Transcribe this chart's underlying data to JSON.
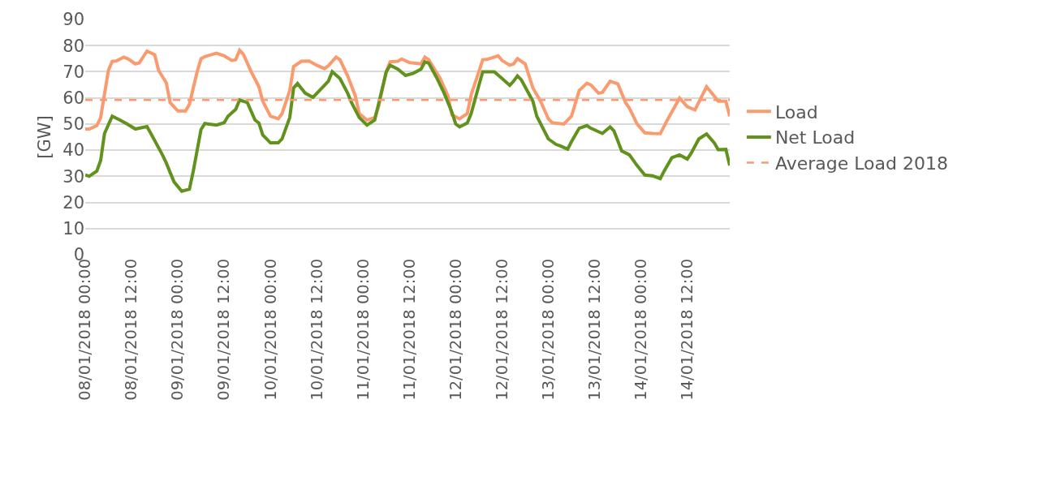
{
  "chart_data": {
    "type": "line",
    "ylabel": "[GW]",
    "xlim": [
      "2018-01-08T00:00",
      "2018-01-14T23:00"
    ],
    "ylim": [
      0,
      90
    ],
    "yticks": [
      0,
      10,
      20,
      30,
      40,
      50,
      60,
      70,
      80,
      90
    ],
    "xticks": [
      {
        "value": "2018-01-08T00:00",
        "label": "08/01/2018 00:00"
      },
      {
        "value": "2018-01-08T12:00",
        "label": "08/01/2018 12:00"
      },
      {
        "value": "2018-01-09T00:00",
        "label": "09/01/2018 00:00"
      },
      {
        "value": "2018-01-09T12:00",
        "label": "09/01/2018 12:00"
      },
      {
        "value": "2018-01-10T00:00",
        "label": "10/01/2018 00:00"
      },
      {
        "value": "2018-01-10T12:00",
        "label": "10/01/2018 12:00"
      },
      {
        "value": "2018-01-11T00:00",
        "label": "11/01/2018 00:00"
      },
      {
        "value": "2018-01-11T12:00",
        "label": "11/01/2018 12:00"
      },
      {
        "value": "2018-01-12T00:00",
        "label": "12/01/2018 00:00"
      },
      {
        "value": "2018-01-12T12:00",
        "label": "12/01/2018 12:00"
      },
      {
        "value": "2018-01-13T00:00",
        "label": "13/01/2018 00:00"
      },
      {
        "value": "2018-01-13T12:00",
        "label": "13/01/2018 12:00"
      },
      {
        "value": "2018-01-14T00:00",
        "label": "14/01/2018 00:00"
      },
      {
        "value": "2018-01-14T12:00",
        "label": "14/01/2018 12:00"
      }
    ],
    "grid": "y",
    "legend": "right",
    "marker": "none",
    "line_style": "solid",
    "series": [
      {
        "name": "Load",
        "color": "#f99a6f",
        "x": [
          "2018-01-08T00:00",
          "2018-01-08T01:00",
          "2018-01-08T03:00",
          "2018-01-08T04:00",
          "2018-01-08T06:00",
          "2018-01-08T07:00",
          "2018-01-08T08:00",
          "2018-01-08T10:00",
          "2018-01-08T11:00",
          "2018-01-08T13:00",
          "2018-01-08T14:00",
          "2018-01-08T16:00",
          "2018-01-08T18:00",
          "2018-01-08T19:00",
          "2018-01-08T21:00",
          "2018-01-08T22:00",
          "2018-01-09T00:00",
          "2018-01-09T02:00",
          "2018-01-09T03:00",
          "2018-01-09T05:00",
          "2018-01-09T06:00",
          "2018-01-09T07:00",
          "2018-01-09T10:00",
          "2018-01-09T12:00",
          "2018-01-09T14:00",
          "2018-01-09T15:00",
          "2018-01-09T16:00",
          "2018-01-09T17:00",
          "2018-01-09T19:00",
          "2018-01-09T21:00",
          "2018-01-09T22:00",
          "2018-01-10T00:00",
          "2018-01-10T02:00",
          "2018-01-10T03:00",
          "2018-01-10T05:00",
          "2018-01-10T06:00",
          "2018-01-10T08:00",
          "2018-01-10T10:00",
          "2018-01-10T12:00",
          "2018-01-10T14:00",
          "2018-01-10T15:00",
          "2018-01-10T17:00",
          "2018-01-10T18:00",
          "2018-01-10T20:00",
          "2018-01-10T22:00",
          "2018-01-10T23:00",
          "2018-01-11T01:00",
          "2018-01-11T03:00",
          "2018-01-11T04:00",
          "2018-01-11T06:00",
          "2018-01-11T07:00",
          "2018-01-11T09:00",
          "2018-01-11T10:00",
          "2018-01-11T12:00",
          "2018-01-11T15:00",
          "2018-01-11T16:00",
          "2018-01-11T17:00",
          "2018-01-11T20:00",
          "2018-01-11T22:00",
          "2018-01-11T23:00",
          "2018-01-12T01:00",
          "2018-01-12T03:00",
          "2018-01-12T04:00",
          "2018-01-12T06:00",
          "2018-01-12T07:00",
          "2018-01-12T08:00",
          "2018-01-12T11:00",
          "2018-01-12T12:00",
          "2018-01-12T14:00",
          "2018-01-12T15:00",
          "2018-01-12T16:00",
          "2018-01-12T18:00",
          "2018-01-12T20:00",
          "2018-01-12T22:00",
          "2018-01-13T00:00",
          "2018-01-13T01:00",
          "2018-01-13T04:00",
          "2018-01-13T06:00",
          "2018-01-13T08:00",
          "2018-01-13T10:00",
          "2018-01-13T11:00",
          "2018-01-13T13:00",
          "2018-01-13T14:00",
          "2018-01-13T16:00",
          "2018-01-13T18:00",
          "2018-01-13T20:00",
          "2018-01-13T21:00",
          "2018-01-13T23:00",
          "2018-01-14T01:00",
          "2018-01-14T03:00",
          "2018-01-14T05:00",
          "2018-01-14T07:00",
          "2018-01-14T10:00",
          "2018-01-14T12:00",
          "2018-01-14T14:00",
          "2018-01-14T17:00",
          "2018-01-14T19:00",
          "2018-01-14T20:00",
          "2018-01-14T22:00",
          "2018-01-14T23:00"
        ],
        "values": [
          48.1,
          48,
          49.4,
          52.5,
          70.5,
          74,
          74.1,
          75.6,
          75,
          73,
          73.4,
          77.9,
          76.5,
          70.5,
          65.8,
          58.2,
          55,
          55,
          57.6,
          70,
          75,
          75.8,
          77.1,
          76.1,
          74.3,
          74.6,
          78.2,
          76.6,
          70,
          64.3,
          58.7,
          53,
          52,
          54,
          62.8,
          72,
          74,
          74.1,
          72.5,
          71.2,
          72.3,
          75.6,
          74.6,
          68.4,
          60.7,
          54,
          51.5,
          52.5,
          56.6,
          70,
          73.8,
          74,
          74.9,
          73.5,
          73,
          75.6,
          74.6,
          67.4,
          60.7,
          53.5,
          52,
          54,
          61.2,
          70,
          74.6,
          74.7,
          76.1,
          74.3,
          72.5,
          73,
          75,
          73,
          63.8,
          58.7,
          52,
          50.5,
          50,
          53,
          62.8,
          65.6,
          65,
          61.8,
          62.1,
          66.4,
          65.4,
          58.2,
          56.1,
          50,
          46.6,
          46.4,
          46.3,
          52,
          59.9,
          56.6,
          55.4,
          64.3,
          60.7,
          58.7,
          58.7,
          53
        ]
      },
      {
        "name": "Net Load",
        "color": "#62921e",
        "x": [
          "2018-01-08T00:00",
          "2018-01-08T01:00",
          "2018-01-08T03:00",
          "2018-01-08T04:00",
          "2018-01-08T05:00",
          "2018-01-08T07:00",
          "2018-01-08T09:00",
          "2018-01-08T11:00",
          "2018-01-08T13:00",
          "2018-01-08T14:00",
          "2018-01-08T16:00",
          "2018-01-08T17:00",
          "2018-01-08T20:00",
          "2018-01-08T21:00",
          "2018-01-08T23:00",
          "2018-01-09T01:00",
          "2018-01-09T03:00",
          "2018-01-09T04:00",
          "2018-01-09T06:00",
          "2018-01-09T07:00",
          "2018-01-09T10:00",
          "2018-01-09T12:00",
          "2018-01-09T13:00",
          "2018-01-09T15:00",
          "2018-01-09T16:00",
          "2018-01-09T18:00",
          "2018-01-09T20:00",
          "2018-01-09T21:00",
          "2018-01-09T22:00",
          "2018-01-10T00:00",
          "2018-01-10T02:00",
          "2018-01-10T03:00",
          "2018-01-10T05:00",
          "2018-01-10T06:00",
          "2018-01-10T07:00",
          "2018-01-10T09:00",
          "2018-01-10T11:00",
          "2018-01-10T13:00",
          "2018-01-10T15:00",
          "2018-01-10T16:00",
          "2018-01-10T18:00",
          "2018-01-10T20:00",
          "2018-01-10T21:00",
          "2018-01-10T23:00",
          "2018-01-11T01:00",
          "2018-01-11T03:00",
          "2018-01-11T04:00",
          "2018-01-11T06:00",
          "2018-01-11T07:00",
          "2018-01-11T09:00",
          "2018-01-11T11:00",
          "2018-01-11T13:00",
          "2018-01-11T15:00",
          "2018-01-11T16:00",
          "2018-01-11T17:00",
          "2018-01-11T19:00",
          "2018-01-11T21:00",
          "2018-01-11T23:00",
          "2018-01-12T00:00",
          "2018-01-12T01:00",
          "2018-01-12T03:00",
          "2018-01-12T04:00",
          "2018-01-12T06:00",
          "2018-01-12T07:00",
          "2018-01-12T10:00",
          "2018-01-12T12:00",
          "2018-01-12T14:00",
          "2018-01-12T15:00",
          "2018-01-12T16:00",
          "2018-01-12T17:00",
          "2018-01-12T20:00",
          "2018-01-12T21:00",
          "2018-01-13T00:00",
          "2018-01-13T02:00",
          "2018-01-13T03:00",
          "2018-01-13T05:00",
          "2018-01-13T06:00",
          "2018-01-13T08:00",
          "2018-01-13T10:00",
          "2018-01-13T11:00",
          "2018-01-13T14:00",
          "2018-01-13T16:00",
          "2018-01-13T17:00",
          "2018-01-13T19:00",
          "2018-01-13T21:00",
          "2018-01-13T23:00",
          "2018-01-14T01:00",
          "2018-01-14T03:00",
          "2018-01-14T05:00",
          "2018-01-14T06:00",
          "2018-01-14T08:00",
          "2018-01-14T10:00",
          "2018-01-14T12:00",
          "2018-01-14T13:00",
          "2018-01-14T15:00",
          "2018-01-14T17:00",
          "2018-01-14T19:00",
          "2018-01-14T20:00",
          "2018-01-14T22:00",
          "2018-01-14T23:00"
        ],
        "values": [
          30.5,
          30,
          32,
          36.1,
          46.4,
          53,
          51.5,
          49.9,
          48.1,
          48.4,
          49,
          46.4,
          38.2,
          35.1,
          27.9,
          24.3,
          25.1,
          32,
          47.9,
          50.2,
          49.6,
          50.5,
          53,
          55.6,
          59.2,
          58.2,
          51.5,
          50.4,
          45.8,
          42.8,
          42.8,
          44.3,
          52.5,
          63.8,
          65.5,
          61.8,
          60.2,
          63.3,
          66.4,
          70,
          67.4,
          61.8,
          58.2,
          52.5,
          49.6,
          51.5,
          57.6,
          70,
          72.5,
          71,
          68.6,
          69.4,
          71,
          73.8,
          73.3,
          67.9,
          61.8,
          54.6,
          50,
          48.9,
          50.4,
          54,
          64.8,
          70,
          70,
          67.4,
          64.8,
          66.4,
          68.4,
          66.9,
          58.7,
          53,
          44.3,
          42.2,
          41.7,
          40.4,
          43.3,
          48.4,
          49.4,
          48.4,
          46.4,
          48.9,
          47.4,
          39.7,
          38.2,
          34.1,
          30.5,
          30.2,
          29.1,
          32,
          37.1,
          38.2,
          36.6,
          38.8,
          44.3,
          46.2,
          42.8,
          40.2,
          40.3,
          34.1
        ]
      }
    ],
    "ref_lines": [
      {
        "axis": "y",
        "value": 59.2,
        "label": "Average Load 2018",
        "color": "#f99a6f",
        "line_style": "dashed"
      }
    ]
  }
}
